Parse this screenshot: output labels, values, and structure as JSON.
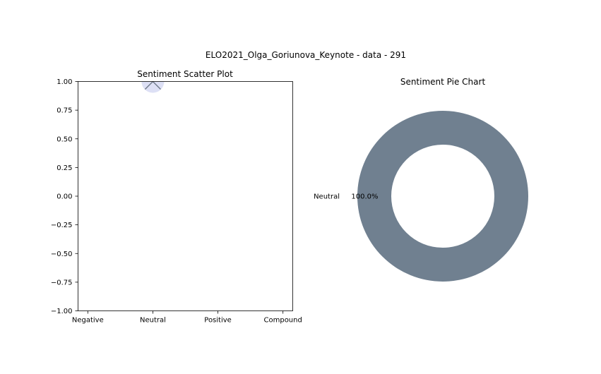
{
  "figure": {
    "suptitle": "ELO2021_Olga_Goriunova_Keynote - data - 291"
  },
  "chart_data": [
    {
      "type": "scatter",
      "title": "Sentiment Scatter Plot",
      "categories": [
        "Negative",
        "Neutral",
        "Positive",
        "Compound"
      ],
      "ylim": [
        -1.0,
        1.0
      ],
      "yticks": [
        1.0,
        0.75,
        0.5,
        0.25,
        0.0,
        -0.25,
        -0.5,
        -0.75,
        -1.0
      ],
      "ytick_labels": [
        "1.00",
        "0.75",
        "0.50",
        "0.25",
        "0.00",
        "−0.25",
        "−0.50",
        "−0.75",
        "−1.00"
      ],
      "points": [
        {
          "category": "Neutral",
          "value": 1.0
        }
      ],
      "marker_fill": "#d7dbf3",
      "marker_edge": "#6b7585",
      "xlabel": "",
      "ylabel": "",
      "grid": false
    },
    {
      "type": "pie",
      "style": "donut",
      "title": "Sentiment Pie Chart",
      "slices": [
        {
          "label": "Neutral",
          "value": 100.0,
          "pct_label": "100.0%",
          "color": "#708090"
        }
      ]
    }
  ]
}
